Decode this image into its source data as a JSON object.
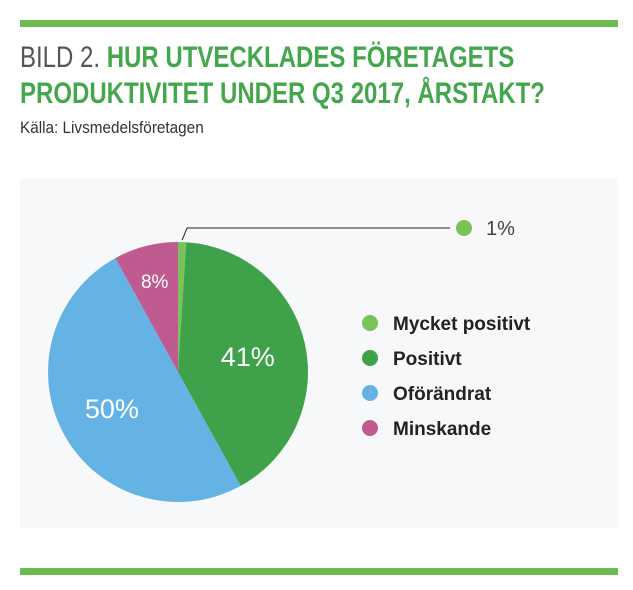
{
  "header": {
    "lead": "BILD 2.",
    "title_line1": "HUR UTVECKLADES FÖRETAGETS",
    "title_line2": "PRODUKTIVITET UNDER Q3 2017, ÅRSTAKT?",
    "source": "Källa: Livsmedelsföretagen"
  },
  "chart_data": {
    "type": "pie",
    "title": "HUR UTVECKLADES FÖRETAGETS PRODUKTIVITET UNDER Q3 2017, ÅRSTAKT?",
    "legend_placement": "right",
    "slices": [
      {
        "name": "Mycket positivt",
        "value": 1,
        "label": "1%",
        "color": "#7cc25a"
      },
      {
        "name": "Positivt",
        "value": 41,
        "label": "41%",
        "color": "#3fa24a"
      },
      {
        "name": "Oförändrat",
        "value": 50,
        "label": "50%",
        "color": "#64b3e4"
      },
      {
        "name": "Minskande",
        "value": 8,
        "label": "8%",
        "color": "#c05b92"
      }
    ]
  },
  "colors": {
    "accent_bar": "#6cbb4e",
    "title_green": "#45a74d"
  }
}
